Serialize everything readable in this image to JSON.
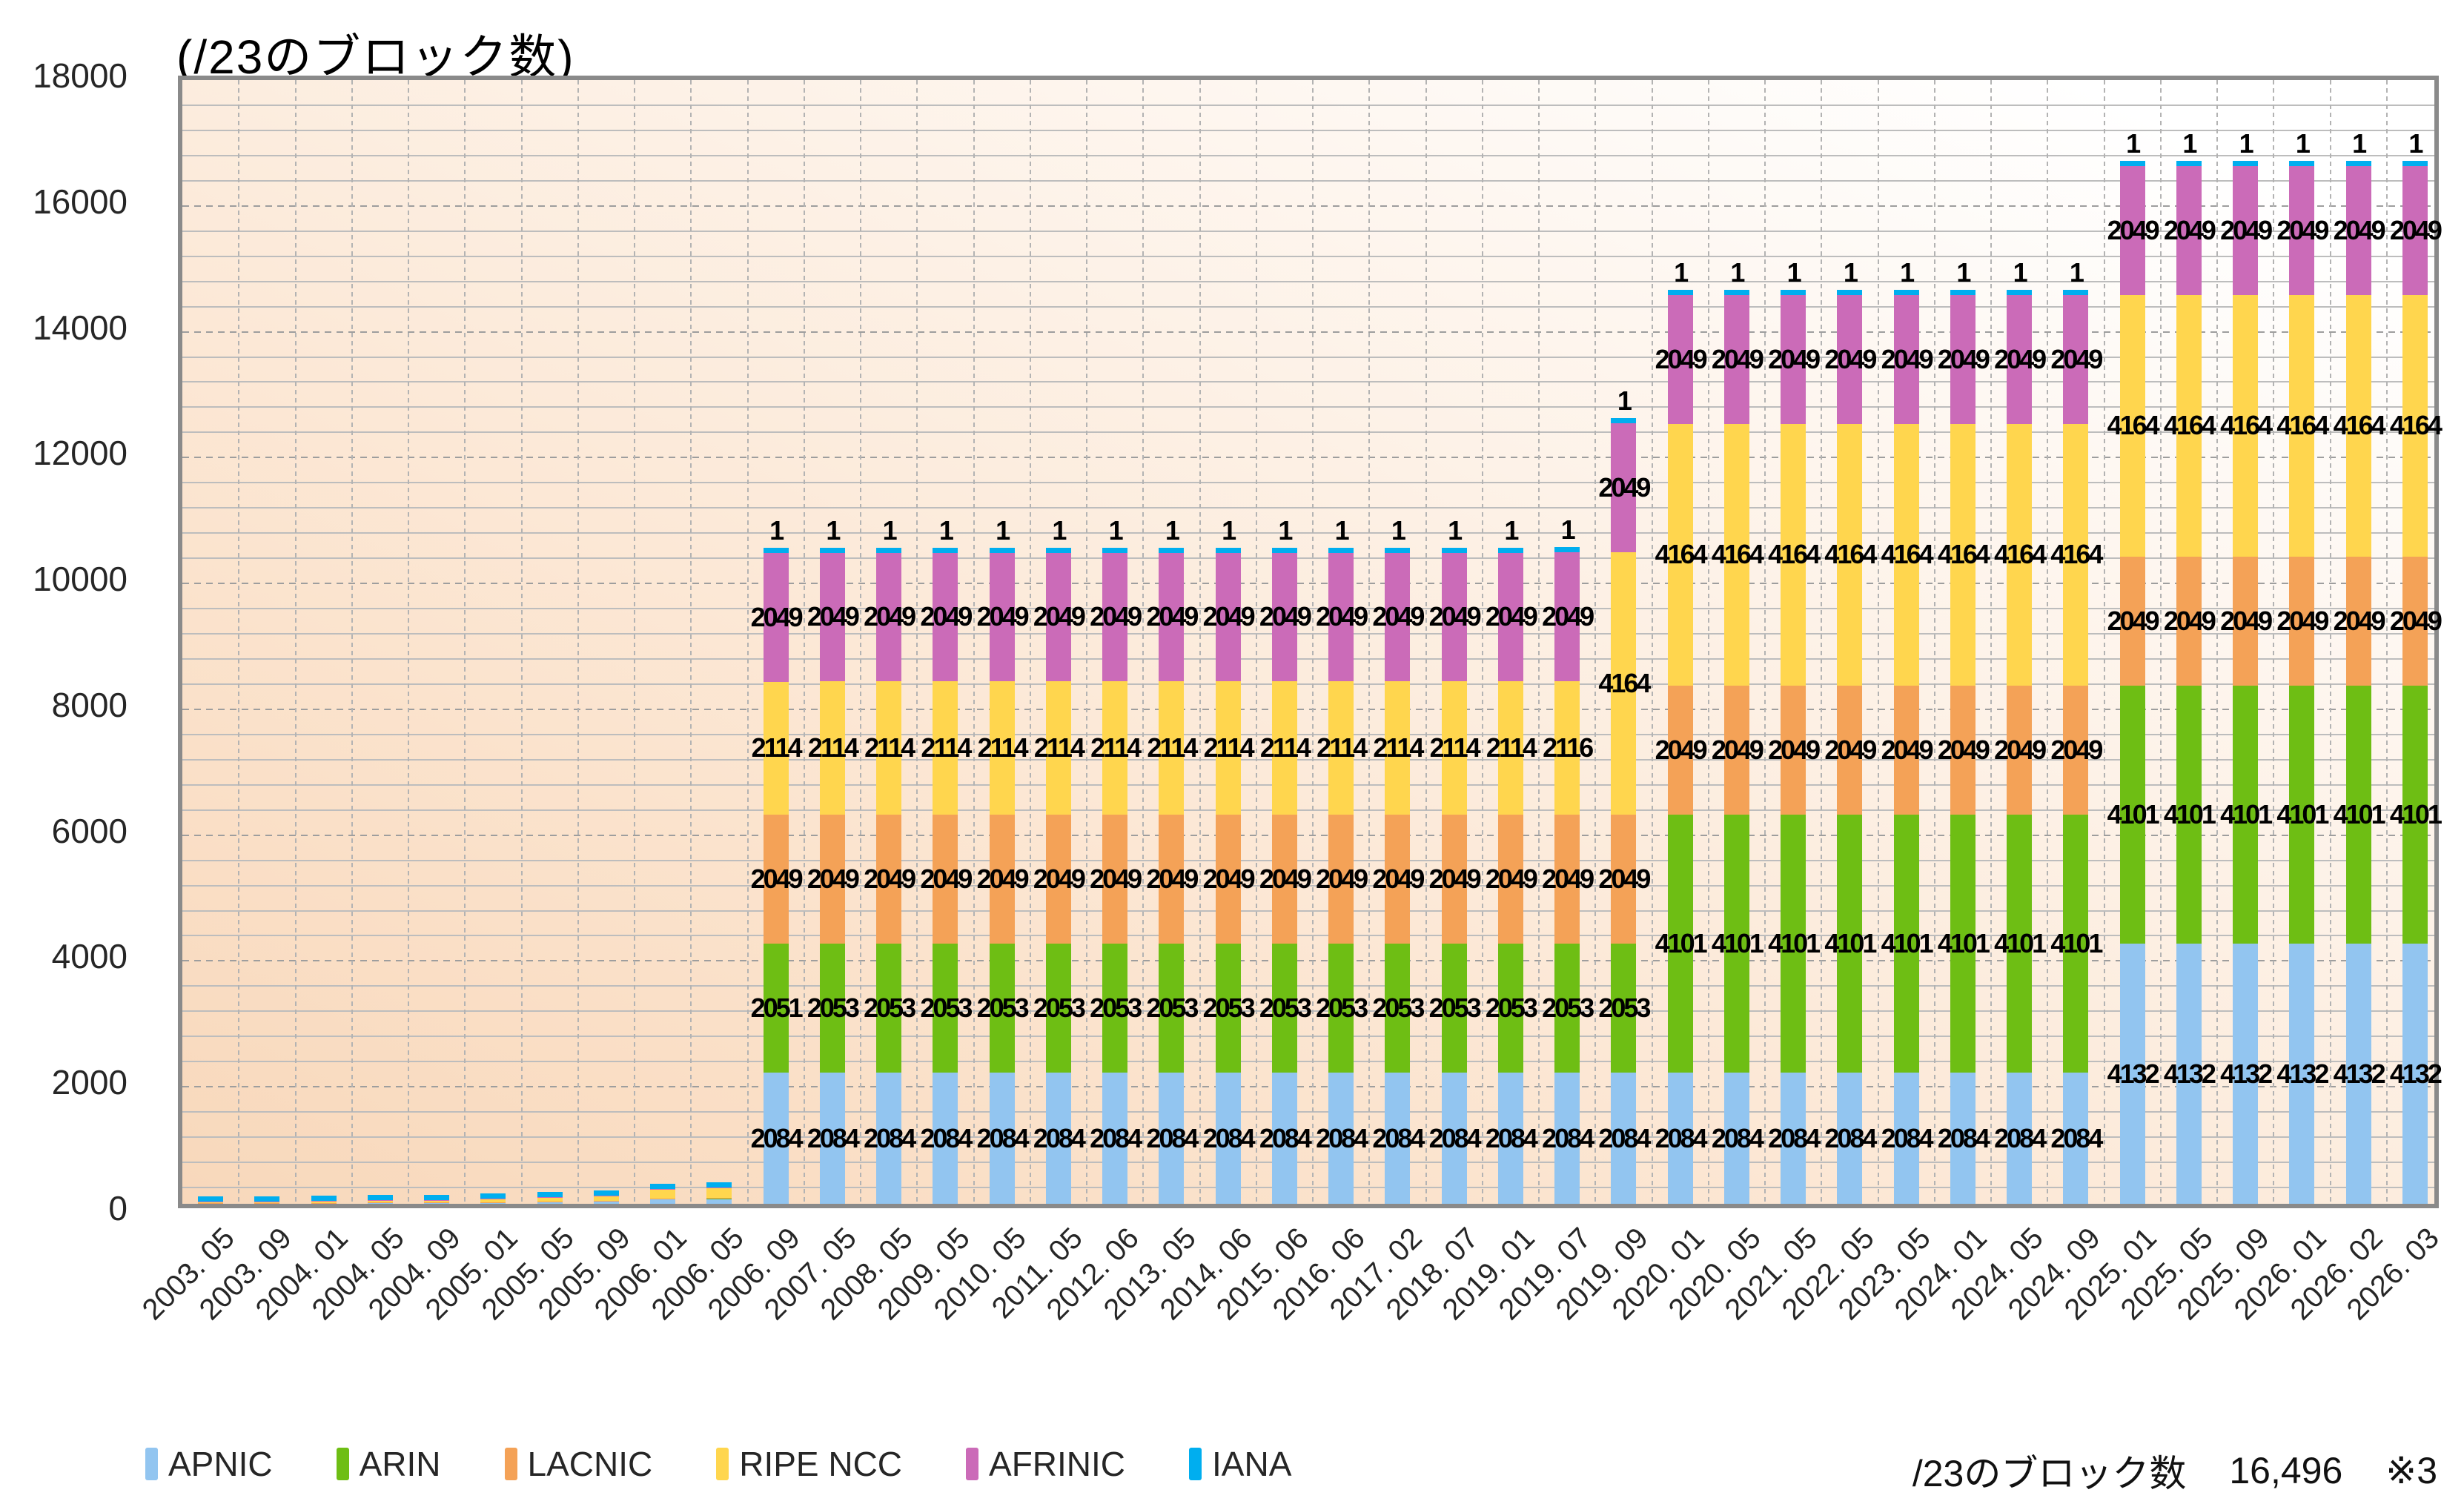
{
  "footer": {
    "label": "/23のブロック数",
    "total": "16,496",
    "note": "※3"
  },
  "chart_data": {
    "type": "bar",
    "stacked": true,
    "title": "(/23のブロック数)",
    "xlabel": "",
    "ylabel": "",
    "ylim": [
      0,
      18000
    ],
    "y_major_step": 2000,
    "y_minor_step": 400,
    "grid": true,
    "legend_position": "bottom",
    "data_labels_from_category_index": 10,
    "categories": [
      "2003. 05",
      "2003. 09",
      "2004. 01",
      "2004. 05",
      "2004. 09",
      "2005. 01",
      "2005. 05",
      "2005. 09",
      "2006. 01",
      "2006. 05",
      "2006. 09",
      "2007. 05",
      "2008. 05",
      "2009. 05",
      "2010. 05",
      "2011. 05",
      "2012. 06",
      "2013. 05",
      "2014. 06",
      "2015. 06",
      "2016. 06",
      "2017. 02",
      "2018. 07",
      "2019. 01",
      "2019. 07",
      "2019. 09",
      "2020. 01",
      "2020. 05",
      "2021. 05",
      "2022. 05",
      "2023. 05",
      "2024. 01",
      "2024. 05",
      "2024. 09",
      "2025. 01",
      "2025. 05",
      "2025. 09",
      "2026. 01",
      "2026. 02",
      "2026. 03"
    ],
    "series": [
      {
        "name": "APNIC",
        "color": "#92C5F0",
        "values": [
          8,
          10,
          12,
          16,
          18,
          24,
          30,
          38,
          70,
          78,
          2084,
          2084,
          2084,
          2084,
          2084,
          2084,
          2084,
          2084,
          2084,
          2084,
          2084,
          2084,
          2084,
          2084,
          2084,
          2084,
          2084,
          2084,
          2084,
          2084,
          2084,
          2084,
          2084,
          2084,
          4132,
          4132,
          4132,
          4132,
          4132,
          4132
        ]
      },
      {
        "name": "ARIN",
        "color": "#6EBE14",
        "values": [
          2,
          2,
          2,
          3,
          3,
          3,
          4,
          5,
          8,
          9,
          2051,
          2053,
          2053,
          2053,
          2053,
          2053,
          2053,
          2053,
          2053,
          2053,
          2053,
          2053,
          2053,
          2053,
          2053,
          2053,
          4101,
          4101,
          4101,
          4101,
          4101,
          4101,
          4101,
          4101,
          4101,
          4101,
          4101,
          4101,
          4101,
          4101
        ]
      },
      {
        "name": "LACNIC",
        "color": "#F4A257",
        "values": [
          1,
          1,
          1,
          1,
          1,
          1,
          1,
          2,
          2,
          2,
          2049,
          2049,
          2049,
          2049,
          2049,
          2049,
          2049,
          2049,
          2049,
          2049,
          2049,
          2049,
          2049,
          2049,
          2049,
          2049,
          2049,
          2049,
          2049,
          2049,
          2049,
          2049,
          2049,
          2049,
          2049,
          2049,
          2049,
          2049,
          2049,
          2049
        ]
      },
      {
        "name": "RIPE NCC",
        "color": "#FFD64E",
        "values": [
          21,
          23,
          28,
          34,
          37,
          51,
          69,
          84,
          154,
          170,
          2114,
          2114,
          2114,
          2114,
          2114,
          2114,
          2114,
          2114,
          2114,
          2114,
          2114,
          2114,
          2114,
          2114,
          2116,
          4164,
          4164,
          4164,
          4164,
          4164,
          4164,
          4164,
          4164,
          4164,
          4164,
          4164,
          4164,
          4164,
          4164,
          4164
        ]
      },
      {
        "name": "AFRINIC",
        "color": "#CB6BB8",
        "values": [
          1,
          1,
          1,
          1,
          1,
          1,
          1,
          1,
          1,
          2,
          2049,
          2049,
          2049,
          2049,
          2049,
          2049,
          2049,
          2049,
          2049,
          2049,
          2049,
          2049,
          2049,
          2049,
          2049,
          2049,
          2049,
          2049,
          2049,
          2049,
          2049,
          2049,
          2049,
          2049,
          2049,
          2049,
          2049,
          2049,
          2049,
          2049
        ]
      },
      {
        "name": "IANA",
        "color": "#00AEEF",
        "values": [
          1,
          1,
          1,
          1,
          1,
          1,
          1,
          1,
          1,
          1,
          1,
          1,
          1,
          1,
          1,
          1,
          1,
          1,
          1,
          1,
          1,
          1,
          1,
          1,
          1,
          1,
          1,
          1,
          1,
          1,
          1,
          1,
          1,
          1,
          1,
          1,
          1,
          1,
          1,
          1
        ]
      }
    ]
  }
}
